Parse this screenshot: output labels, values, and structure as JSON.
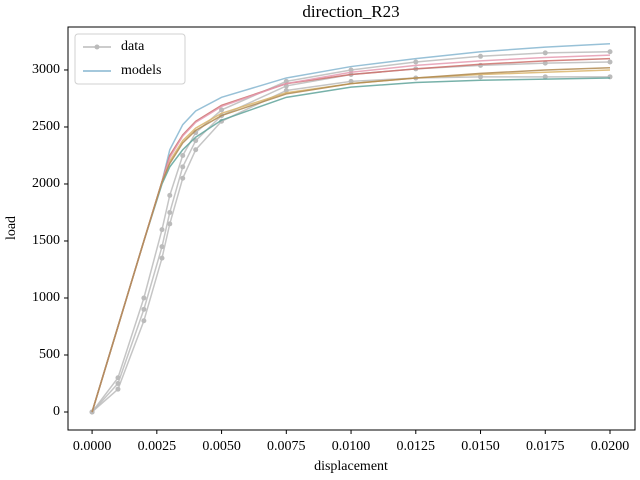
{
  "chart_data": {
    "type": "line",
    "title": "direction_R23",
    "x_label": "displacement",
    "y_label": "load",
    "x": [
      0,
      0.001,
      0.002,
      0.0027,
      0.003,
      0.0035,
      0.004,
      0.005,
      0.0075,
      0.01,
      0.0125,
      0.015,
      0.0175,
      0.02
    ],
    "xlim": [
      -0.00093,
      0.020965
    ],
    "xticks": [
      {
        "value": 0,
        "label": "0.0000"
      },
      {
        "value": 0.0025,
        "label": "0.0025"
      },
      {
        "value": 0.005,
        "label": "0.0050"
      },
      {
        "value": 0.0075,
        "label": "0.0075"
      },
      {
        "value": 0.01,
        "label": "0.0100"
      },
      {
        "value": 0.0125,
        "label": "0.0125"
      },
      {
        "value": 0.015,
        "label": "0.0150"
      },
      {
        "value": 0.0175,
        "label": "0.0175"
      },
      {
        "value": 0.02,
        "label": "0.0200"
      }
    ],
    "ylim": [
      -158,
      3377
    ],
    "yticks": [
      0,
      500,
      1000,
      1500,
      2000,
      2500,
      3000
    ],
    "legend": "upper left",
    "series": [
      {
        "name": "data",
        "color": "#bbbbbb",
        "markers": true,
        "curves": [
          [
            0,
            300,
            1000,
            1600,
            1900,
            2250,
            2450,
            2650,
            2900,
            3000,
            3070,
            3120,
            3150,
            3160
          ],
          [
            0,
            200,
            800,
            1350,
            1650,
            2050,
            2300,
            2550,
            2820,
            2900,
            2930,
            2940,
            2940,
            2940
          ],
          [
            0,
            250,
            900,
            1450,
            1750,
            2150,
            2380,
            2600,
            2860,
            2960,
            3010,
            3040,
            3060,
            3070
          ]
        ]
      },
      {
        "name": "models",
        "color": "#86b6d0",
        "markers": false,
        "curve_colors": [
          "#86b6d0",
          "#cc6f6a",
          "#d9b46a",
          "#5fa39a",
          "#e59ab0",
          "#b08a50"
        ],
        "curves": [
          [
            0,
            750,
            1500,
            2020,
            2300,
            2520,
            2640,
            2760,
            2930,
            3030,
            3100,
            3160,
            3200,
            3230
          ],
          [
            0,
            750,
            1500,
            2020,
            2250,
            2430,
            2550,
            2690,
            2880,
            2960,
            3010,
            3050,
            3080,
            3100
          ],
          [
            0,
            750,
            1500,
            2020,
            2200,
            2380,
            2490,
            2620,
            2800,
            2880,
            2930,
            2960,
            2980,
            3000
          ],
          [
            0,
            750,
            1500,
            2000,
            2150,
            2300,
            2410,
            2560,
            2760,
            2850,
            2890,
            2910,
            2920,
            2930
          ],
          [
            0,
            750,
            1500,
            2020,
            2230,
            2420,
            2540,
            2680,
            2880,
            2980,
            3040,
            3080,
            3110,
            3130
          ],
          [
            0,
            750,
            1500,
            2020,
            2180,
            2360,
            2470,
            2600,
            2790,
            2880,
            2930,
            2970,
            3000,
            3020
          ]
        ]
      }
    ]
  }
}
